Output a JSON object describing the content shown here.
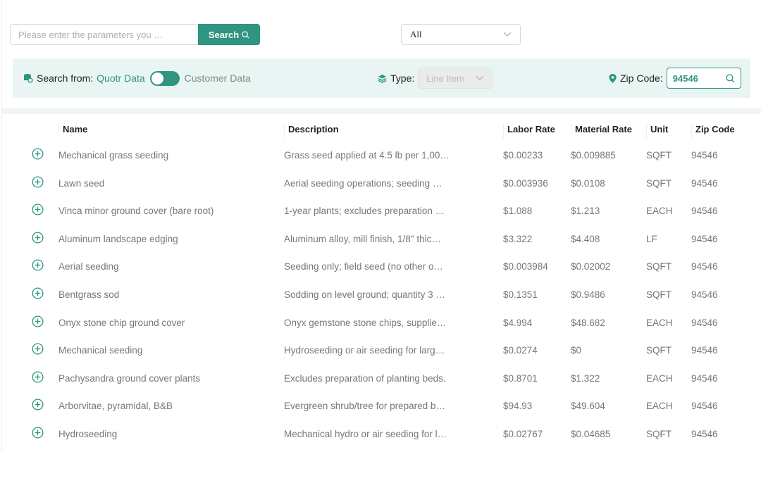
{
  "search": {
    "placeholder": "Please enter the parameters you …",
    "button_label": "Search"
  },
  "category_select": {
    "value": "All"
  },
  "filter": {
    "search_from_label": "Search from:",
    "source_a": "Quotr Data",
    "source_b": "Customer Data",
    "toggle_on": false,
    "type_label": "Type:",
    "type_value": "Line Item",
    "zip_label": "Zip Code:",
    "zip_value": "94546"
  },
  "colors": {
    "accent": "#2f9480",
    "filter_bg": "#e9f5f2"
  },
  "table": {
    "columns": [
      "Name",
      "Description",
      "Labor Rate",
      "Material Rate",
      "Unit",
      "Zip Code"
    ],
    "rows": [
      [
        "Mechanical grass seeding",
        "Grass seed applied at 4.5 lb per 1,00…",
        "$0.00233",
        "$0.009885",
        "SQFT",
        "94546"
      ],
      [
        "Lawn seed",
        "Aerial seeding operations; seeding …",
        "$0.003936",
        "$0.0108",
        "SQFT",
        "94546"
      ],
      [
        "Vinca minor ground cover (bare root)",
        "1-year plants; excludes preparation …",
        "$1.088",
        "$1.213",
        "EACH",
        "94546"
      ],
      [
        "Aluminum landscape edging",
        "Aluminum alloy, mill finish, 1/8\" thic…",
        "$3.322",
        "$4.408",
        "LF",
        "94546"
      ],
      [
        "Aerial seeding",
        "Seeding only; field seed (no other o…",
        "$0.003984",
        "$0.02002",
        "SQFT",
        "94546"
      ],
      [
        "Bentgrass sod",
        "Sodding on level ground; quantity 3 …",
        "$0.1351",
        "$0.9486",
        "SQFT",
        "94546"
      ],
      [
        "Onyx stone chip ground cover",
        "Onyx gemstone stone chips, supplie…",
        "$4.994",
        "$48.682",
        "EACH",
        "94546"
      ],
      [
        "Mechanical seeding",
        "Hydroseeding or air seeding for larg…",
        "$0.0274",
        "$0",
        "SQFT",
        "94546"
      ],
      [
        "Pachysandra ground cover plants",
        "Excludes preparation of planting beds.",
        "$0.8701",
        "$1.322",
        "EACH",
        "94546"
      ],
      [
        "Arborvitae, pyramidal, B&B",
        "Evergreen shrub/tree for prepared b…",
        "$94.93",
        "$49.604",
        "EACH",
        "94546"
      ],
      [
        "Hydroseeding",
        "Mechanical hydro or air seeding for l…",
        "$0.02767",
        "$0.04685",
        "SQFT",
        "94546"
      ]
    ]
  }
}
